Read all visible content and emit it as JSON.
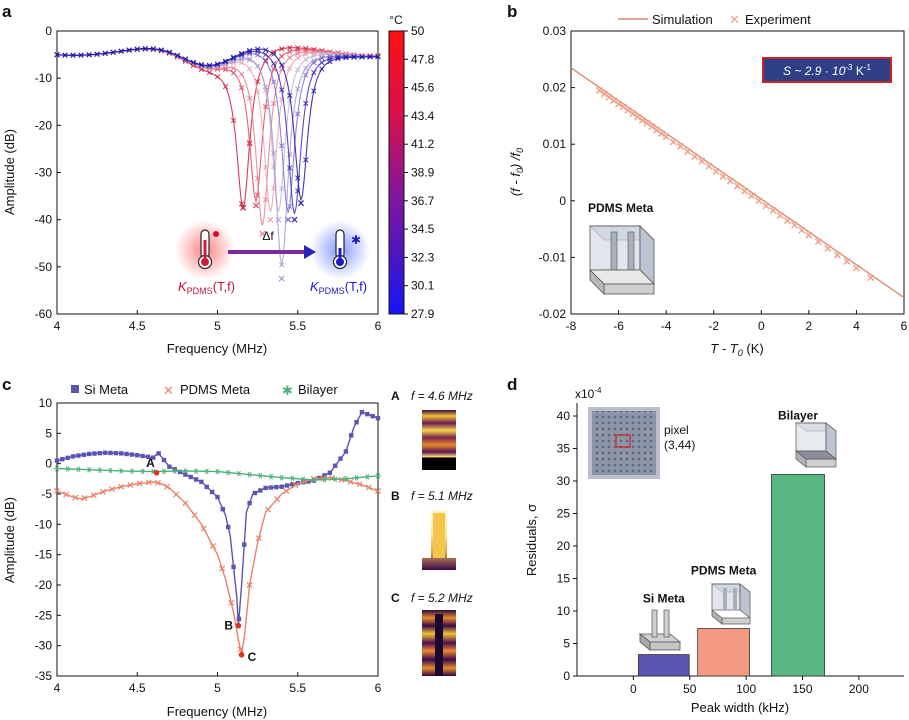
{
  "panel_letters": [
    "a",
    "b",
    "c",
    "d"
  ],
  "panel_a": {
    "xlabel": "Frequency (MHz)",
    "ylabel": "Amplitude (dB)",
    "xlim": [
      4,
      6
    ],
    "ylim": [
      -60,
      0
    ],
    "xticks": [
      "4",
      "4.5",
      "5",
      "5.5",
      "6"
    ],
    "yticks": [
      "0",
      "-10",
      "-20",
      "-30",
      "-40",
      "-50",
      "-60"
    ],
    "colorbar": {
      "unit": "°C",
      "ticks": [
        "50",
        "47.8",
        "45.6",
        "43.4",
        "41.2",
        "38.9",
        "36.7",
        "34.5",
        "32.3",
        "30.1",
        "27.9"
      ],
      "hot_color": "#ff0000",
      "cold_color": "#1414ff"
    },
    "inset": {
      "delta_label": "Δf",
      "left_label": "K",
      "right_label": "K",
      "subscript": "PDMS",
      "suffix": "(T,f)"
    },
    "curve_dips": [
      {
        "f0": 5.16,
        "depth": -37.5,
        "color": "#d01c3a"
      },
      {
        "f0": 5.24,
        "depth": -37.0,
        "color": "#e0475f"
      },
      {
        "f0": 5.28,
        "depth": -43.0,
        "color": "#e77d90"
      },
      {
        "f0": 5.33,
        "depth": -40.0,
        "color": "#e9a3b4"
      },
      {
        "f0": 5.38,
        "depth": -40.0,
        "color": "#c3b3d6"
      },
      {
        "f0": 5.4,
        "depth": -52.5,
        "color": "#a59bd0"
      },
      {
        "f0": 5.44,
        "depth": -40.0,
        "color": "#7b6fd0"
      },
      {
        "f0": 5.48,
        "depth": -40.0,
        "color": "#3a2bbd"
      },
      {
        "f0": 5.52,
        "depth": -36.5,
        "color": "#1e18a8"
      }
    ]
  },
  "panel_b": {
    "legend": [
      "Simulation",
      "Experiment"
    ],
    "annotation": "S ~ 2.9 · 10",
    "annotation_exp": "-3",
    "annotation_unit": " K",
    "annotation_unit_exp": "-1",
    "xlabel": "T - T",
    "xlabel_sub": "0",
    "xlabel_unit": " (K)",
    "ylabel": "(f - f",
    "ylabel_sub": "0",
    "ylabel_rest": ") /f",
    "ylabel_sub2": "0",
    "xlim": [
      -8,
      6
    ],
    "ylim": [
      -0.02,
      0.03
    ],
    "xticks": [
      "-8",
      "-6",
      "-4",
      "-2",
      "0",
      "2",
      "4",
      "6"
    ],
    "yticks": [
      "0.03",
      "0.02",
      "0.01",
      "0",
      "-0.01",
      "-0.02"
    ],
    "inset_label": "PDMS Meta",
    "colors": {
      "line": "#d8886a",
      "marker": "#f2a08a",
      "box_fill": "#2f3f86",
      "box_border": "#cc2222"
    }
  },
  "panel_c": {
    "legend": [
      "Si Meta",
      "PDMS Meta",
      "Bilayer"
    ],
    "xlabel": "Frequency (MHz)",
    "ylabel": "Amplitude (dB)",
    "xlim": [
      4,
      6
    ],
    "ylim": [
      -35,
      10
    ],
    "xticks": [
      "4",
      "4.5",
      "5",
      "5.5",
      "6"
    ],
    "yticks": [
      "10",
      "5",
      "0",
      "-5",
      "-10",
      "-15",
      "-20",
      "-25",
      "-30",
      "-35"
    ],
    "points": {
      "A": "A",
      "B": "B",
      "C": "C"
    },
    "colors": {
      "si": "#5b54b0",
      "pdms": "#e8826a",
      "bilayer": "#4fb07c",
      "point": "#e03020"
    },
    "field_maps": [
      {
        "letter": "A",
        "label": "f = 4.6 MHz"
      },
      {
        "letter": "B",
        "label": "f = 5.1 MHz"
      },
      {
        "letter": "C",
        "label": "f = 5.2 MHz"
      }
    ]
  },
  "panel_d": {
    "exponent_label": "x10",
    "exponent_sup": "-4",
    "xlabel": "Peak width (kHz)",
    "ylabel": "Residuals, σ",
    "xticks": [
      "0",
      "50",
      "100",
      "150",
      "200"
    ],
    "yticks": [
      "0",
      "5",
      "10",
      "15",
      "20",
      "25",
      "30",
      "35",
      "40"
    ],
    "inset_text": "pixel",
    "inset_text2": "(3,44)"
  },
  "chart_data": [
    {
      "type": "line",
      "panel": "a",
      "xlabel": "Frequency (MHz)",
      "ylabel": "Amplitude (dB)",
      "xlim": [
        4,
        6
      ],
      "ylim": [
        -60,
        0
      ],
      "series": [
        {
          "resonance_MHz": 5.16,
          "min_dB": -37.5
        },
        {
          "resonance_MHz": 5.28,
          "min_dB": -43.0
        },
        {
          "resonance_MHz": 5.4,
          "min_dB": -52.5
        },
        {
          "resonance_MHz": 5.52,
          "min_dB": -36.5
        }
      ],
      "colorbar_range_C": [
        27.9,
        50
      ]
    },
    {
      "type": "scatter",
      "panel": "b",
      "xlabel": "T - T0 (K)",
      "ylabel": "(f - f0) /f0",
      "xlim": [
        -8,
        6
      ],
      "ylim": [
        -0.02,
        0.03
      ],
      "series": [
        {
          "name": "Simulation",
          "x": [
            -8,
            6
          ],
          "y": [
            0.0235,
            -0.0171
          ]
        },
        {
          "name": "Experiment",
          "x": [
            -6.8,
            -6.6,
            -6.4,
            -6.2,
            -6.0,
            -5.8,
            -5.6,
            -5.4,
            -5.2,
            -5.0,
            -4.8,
            -4.6,
            -4.4,
            -4.2,
            -4.0,
            -3.7,
            -3.4,
            -3.1,
            -2.8,
            -2.5,
            -2.2,
            -1.9,
            -1.6,
            -1.3,
            -1.0,
            -0.7,
            -0.4,
            -0.1,
            0.2,
            0.5,
            0.8,
            1.1,
            1.4,
            1.7,
            2.0,
            2.4,
            2.8,
            3.2,
            3.6,
            4.0,
            4.6
          ],
          "y": [
            0.0195,
            0.0189,
            0.0183,
            0.0177,
            0.0171,
            0.0166,
            0.016,
            0.0154,
            0.0148,
            0.0142,
            0.0137,
            0.0131,
            0.0125,
            0.0119,
            0.0113,
            0.0104,
            0.0096,
            0.0087,
            0.0078,
            0.007,
            0.0061,
            0.0052,
            0.0043,
            0.0035,
            0.0026,
            0.0017,
            0.0009,
            0.0,
            -0.0009,
            -0.0017,
            -0.0026,
            -0.0035,
            -0.0043,
            -0.0052,
            -0.0061,
            -0.0072,
            -0.0084,
            -0.0096,
            -0.0107,
            -0.0119,
            -0.0136
          ]
        }
      ]
    },
    {
      "type": "line",
      "panel": "c",
      "xlabel": "Frequency (MHz)",
      "ylabel": "Amplitude (dB)",
      "xlim": [
        4,
        6
      ],
      "ylim": [
        -35,
        10
      ],
      "series": [
        {
          "name": "Si Meta",
          "x": [
            4.0,
            4.1,
            4.2,
            4.3,
            4.4,
            4.5,
            4.6,
            4.63,
            4.7,
            4.8,
            4.9,
            5.0,
            5.05,
            5.08,
            5.1,
            5.12,
            5.13,
            5.15,
            5.18,
            5.22,
            5.3,
            5.4,
            5.5,
            5.6,
            5.7,
            5.8,
            5.85,
            5.9,
            5.95,
            6.0
          ],
          "y": [
            0.5,
            1.2,
            1.6,
            1.8,
            1.7,
            1.4,
            1.0,
            1.8,
            -0.5,
            -1.8,
            -3.0,
            -5.5,
            -8.5,
            -12.0,
            -17.0,
            -22.0,
            -26.7,
            -20.0,
            -8.0,
            -5.0,
            -4.0,
            -3.8,
            -3.2,
            -2.8,
            -1.5,
            2.0,
            6.0,
            8.5,
            8.0,
            7.5
          ]
        },
        {
          "name": "PDMS Meta",
          "x": [
            4.0,
            4.1,
            4.15,
            4.2,
            4.3,
            4.4,
            4.5,
            4.6,
            4.65,
            4.7,
            4.8,
            4.9,
            5.0,
            5.05,
            5.1,
            5.13,
            5.15,
            5.17,
            5.2,
            5.25,
            5.3,
            5.4,
            5.5,
            5.6,
            5.7,
            5.8,
            5.9,
            6.0
          ],
          "y": [
            -4.5,
            -5.5,
            -5.8,
            -5.5,
            -4.5,
            -3.8,
            -3.3,
            -3.0,
            -3.3,
            -4.0,
            -6.5,
            -10.0,
            -15.0,
            -19.0,
            -24.5,
            -29.0,
            -31.5,
            -28.0,
            -20.0,
            -13.0,
            -8.0,
            -5.0,
            -3.3,
            -2.5,
            -2.3,
            -2.8,
            -3.5,
            -4.5
          ]
        },
        {
          "name": "Bilayer",
          "x": [
            4.0,
            4.2,
            4.4,
            4.6,
            4.8,
            5.0,
            5.2,
            5.4,
            5.6,
            5.8,
            6.0
          ],
          "y": [
            -0.8,
            -1.0,
            -1.2,
            -1.3,
            -1.2,
            -1.3,
            -1.8,
            -2.3,
            -2.7,
            -2.5,
            -2.0
          ]
        }
      ],
      "annotations": [
        {
          "label": "A",
          "x": 4.62,
          "y": -1.5
        },
        {
          "label": "B",
          "x": 5.13,
          "y": -26.7
        },
        {
          "label": "C",
          "x": 5.15,
          "y": -31.5
        }
      ]
    },
    {
      "type": "bar",
      "panel": "d",
      "xlabel": "Peak width (kHz)",
      "ylabel": "Residuals, σ",
      "categories": [
        "Si Meta",
        "PDMS Meta",
        "Bilayer"
      ],
      "x_center_kHz": [
        27,
        80,
        146
      ],
      "width_kHz": [
        45,
        46,
        47
      ],
      "values": [
        3.3,
        7.3,
        31.0
      ],
      "unit_multiplier": "x10^-4",
      "ylim": [
        0,
        42
      ],
      "colors": [
        "#5b54b0",
        "#f59a82",
        "#5bb782"
      ]
    }
  ]
}
